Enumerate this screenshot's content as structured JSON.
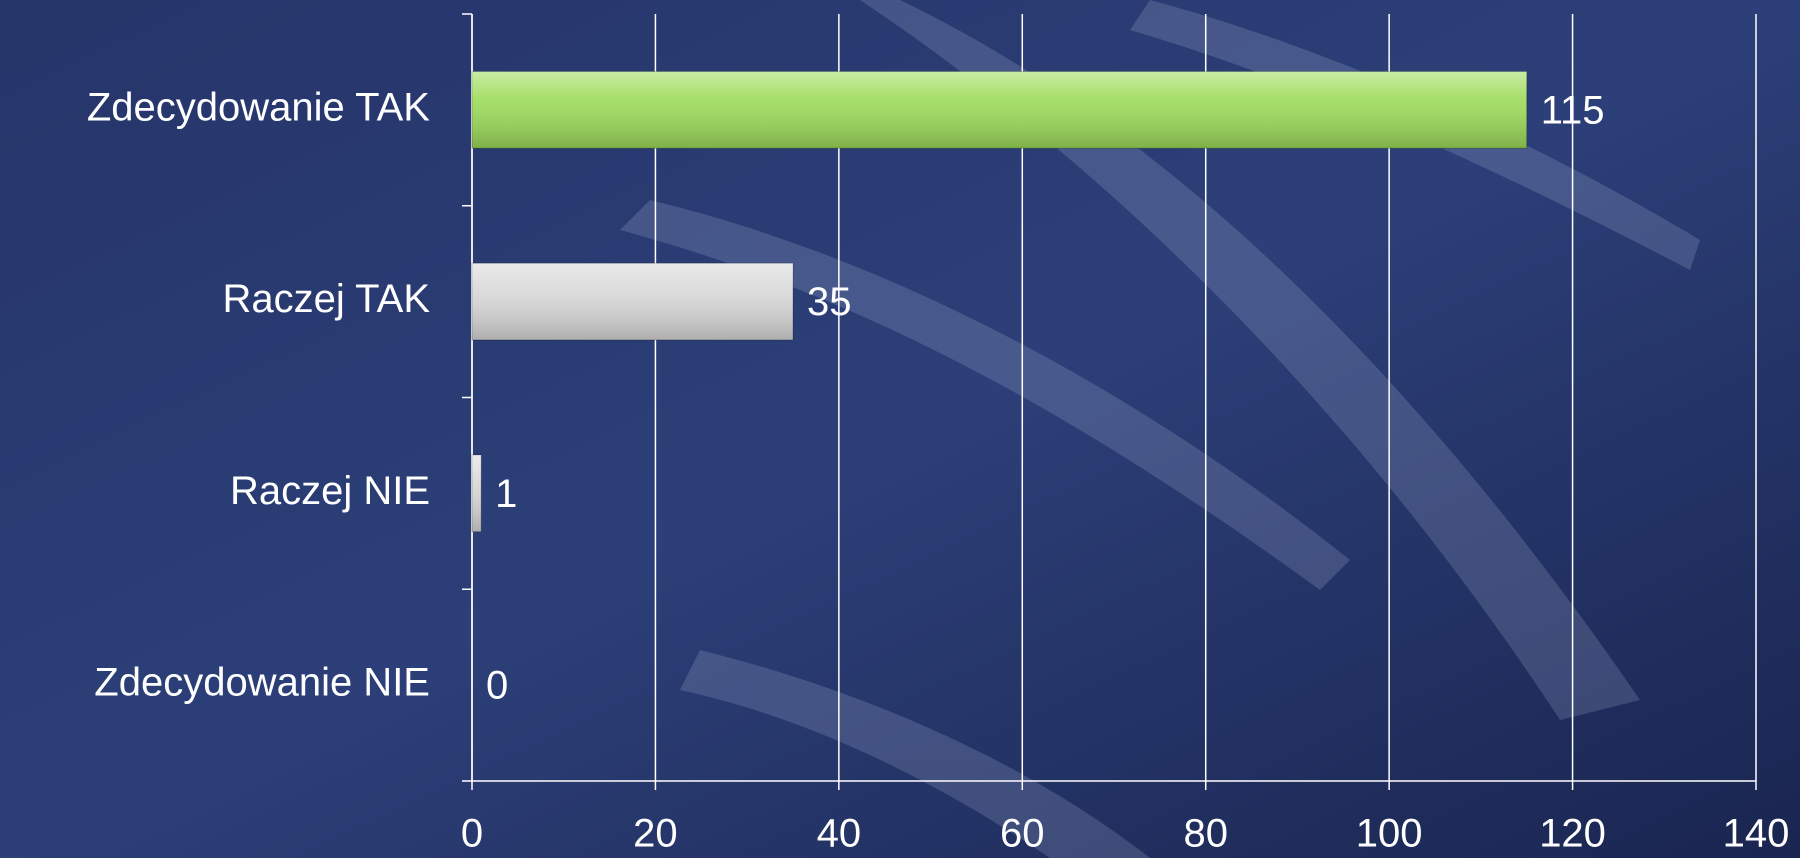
{
  "chart_data": {
    "type": "bar",
    "orientation": "horizontal",
    "categories": [
      "Zdecydowanie TAK",
      "Raczej TAK",
      "Raczej NIE",
      "Zdecydowanie NIE"
    ],
    "values": [
      115,
      35,
      1,
      0
    ],
    "colors": [
      "#9ddc5a",
      "#d9d9d9",
      "#d9d9d9",
      "#d9d9d9"
    ],
    "xlim": [
      0,
      140
    ],
    "xticks": [
      0,
      20,
      40,
      60,
      80,
      100,
      120,
      140
    ],
    "grid": true
  }
}
